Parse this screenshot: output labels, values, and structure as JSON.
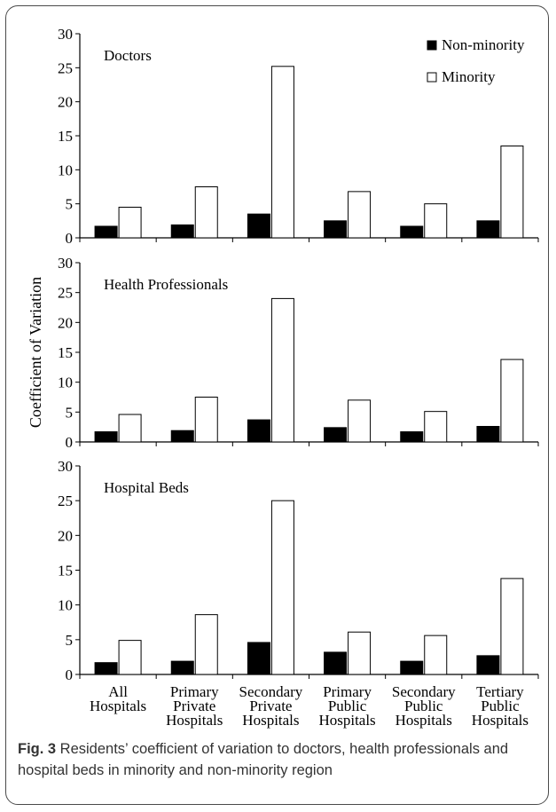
{
  "colors": {
    "non_minority": "#000000",
    "minority": "#ffffff",
    "stroke": "#000000"
  },
  "ylabel": "Coefficient of Variation",
  "legend": {
    "position": "top-right",
    "entries": [
      "Non-minority",
      "Minority"
    ]
  },
  "categories": [
    [
      "All",
      "Hospitals"
    ],
    [
      "Primary",
      "Private",
      "Hospitals"
    ],
    [
      "Secondary",
      "Private",
      "Hospitals"
    ],
    [
      "Primary",
      "Public",
      "Hospitals"
    ],
    [
      "Secondary",
      "Public",
      "Hospitals"
    ],
    [
      "Tertiary",
      "Public",
      "Hospitals"
    ]
  ],
  "chart_data": [
    {
      "type": "bar",
      "title": "Doctors",
      "categories": [
        "All Hospitals",
        "Primary Private Hospitals",
        "Secondary Private Hospitals",
        "Primary Public Hospitals",
        "Secondary Public Hospitals",
        "Tertiary Public Hospitals"
      ],
      "series": [
        {
          "name": "Non-minority",
          "values": [
            1.7,
            1.9,
            3.5,
            2.5,
            1.7,
            2.5
          ]
        },
        {
          "name": "Minority",
          "values": [
            4.5,
            7.5,
            25.2,
            6.8,
            5.0,
            13.5
          ]
        }
      ],
      "ylim": [
        0,
        30
      ],
      "yticks": [
        0,
        5,
        10,
        15,
        20,
        25,
        30
      ],
      "grid": false
    },
    {
      "type": "bar",
      "title": "Health Professionals",
      "categories": [
        "All Hospitals",
        "Primary Private Hospitals",
        "Secondary Private Hospitals",
        "Primary Public Hospitals",
        "Secondary Public Hospitals",
        "Tertiary Public Hospitals"
      ],
      "series": [
        {
          "name": "Non-minority",
          "values": [
            1.7,
            1.9,
            3.7,
            2.4,
            1.7,
            2.6
          ]
        },
        {
          "name": "Minority",
          "values": [
            4.6,
            7.5,
            24.0,
            7.0,
            5.1,
            13.8
          ]
        }
      ],
      "ylim": [
        0,
        30
      ],
      "yticks": [
        0,
        5,
        10,
        15,
        20,
        25,
        30
      ],
      "grid": false
    },
    {
      "type": "bar",
      "title": "Hospital Beds",
      "categories": [
        "All Hospitals",
        "Primary Private Hospitals",
        "Secondary Private Hospitals",
        "Primary Public Hospitals",
        "Secondary Public Hospitals",
        "Tertiary Public Hospitals"
      ],
      "series": [
        {
          "name": "Non-minority",
          "values": [
            1.7,
            1.9,
            4.6,
            3.2,
            1.9,
            2.7
          ]
        },
        {
          "name": "Minority",
          "values": [
            4.9,
            8.6,
            25.0,
            6.1,
            5.6,
            13.8
          ]
        }
      ],
      "ylim": [
        0,
        30
      ],
      "yticks": [
        0,
        5,
        10,
        15,
        20,
        25,
        30
      ],
      "grid": false
    }
  ],
  "caption": {
    "label": "Fig. 3",
    "text": " Residents’ coefficient of variation to doctors, health professionals and hospital beds in minority and non-minority region"
  }
}
